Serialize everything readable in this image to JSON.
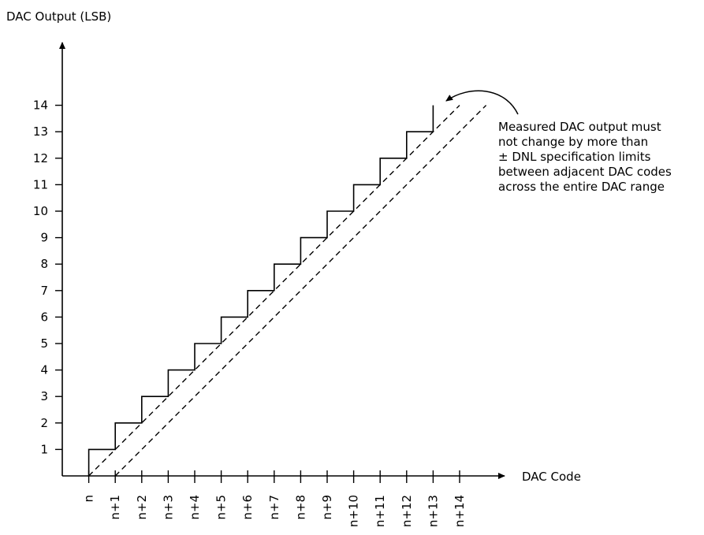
{
  "chart_data": {
    "type": "line",
    "ylabel": "DAC Output (LSB)",
    "xlabel": "DAC Code",
    "x_tick_labels": [
      "n",
      "n+1",
      "n+2",
      "n+3",
      "n+4",
      "n+5",
      "n+6",
      "n+7",
      "n+8",
      "n+9",
      "n+10",
      "n+11",
      "n+12",
      "n+13",
      "n+14"
    ],
    "y_ticks": [
      1,
      2,
      3,
      4,
      5,
      6,
      7,
      8,
      9,
      10,
      11,
      12,
      13,
      14
    ],
    "ylim": [
      0,
      15
    ],
    "grid": false,
    "series": [
      {
        "style": "solid-staircase",
        "x": [
          0,
          1,
          2,
          3,
          4,
          5,
          6,
          7,
          8,
          9,
          10,
          11,
          12,
          13
        ],
        "y": [
          1,
          2,
          3,
          4,
          5,
          6,
          7,
          8,
          9,
          10,
          11,
          12,
          13,
          14
        ]
      },
      {
        "style": "dashed",
        "x": [
          0,
          14
        ],
        "y": [
          0,
          14
        ]
      },
      {
        "style": "dashed",
        "x": [
          1,
          15
        ],
        "y": [
          0,
          14
        ]
      }
    ],
    "annotation": {
      "lines": [
        "Measured DAC output must",
        "not change by more than",
        "± DNL specification limits",
        "between adjacent DAC codes",
        "across the entire DAC range"
      ]
    }
  }
}
